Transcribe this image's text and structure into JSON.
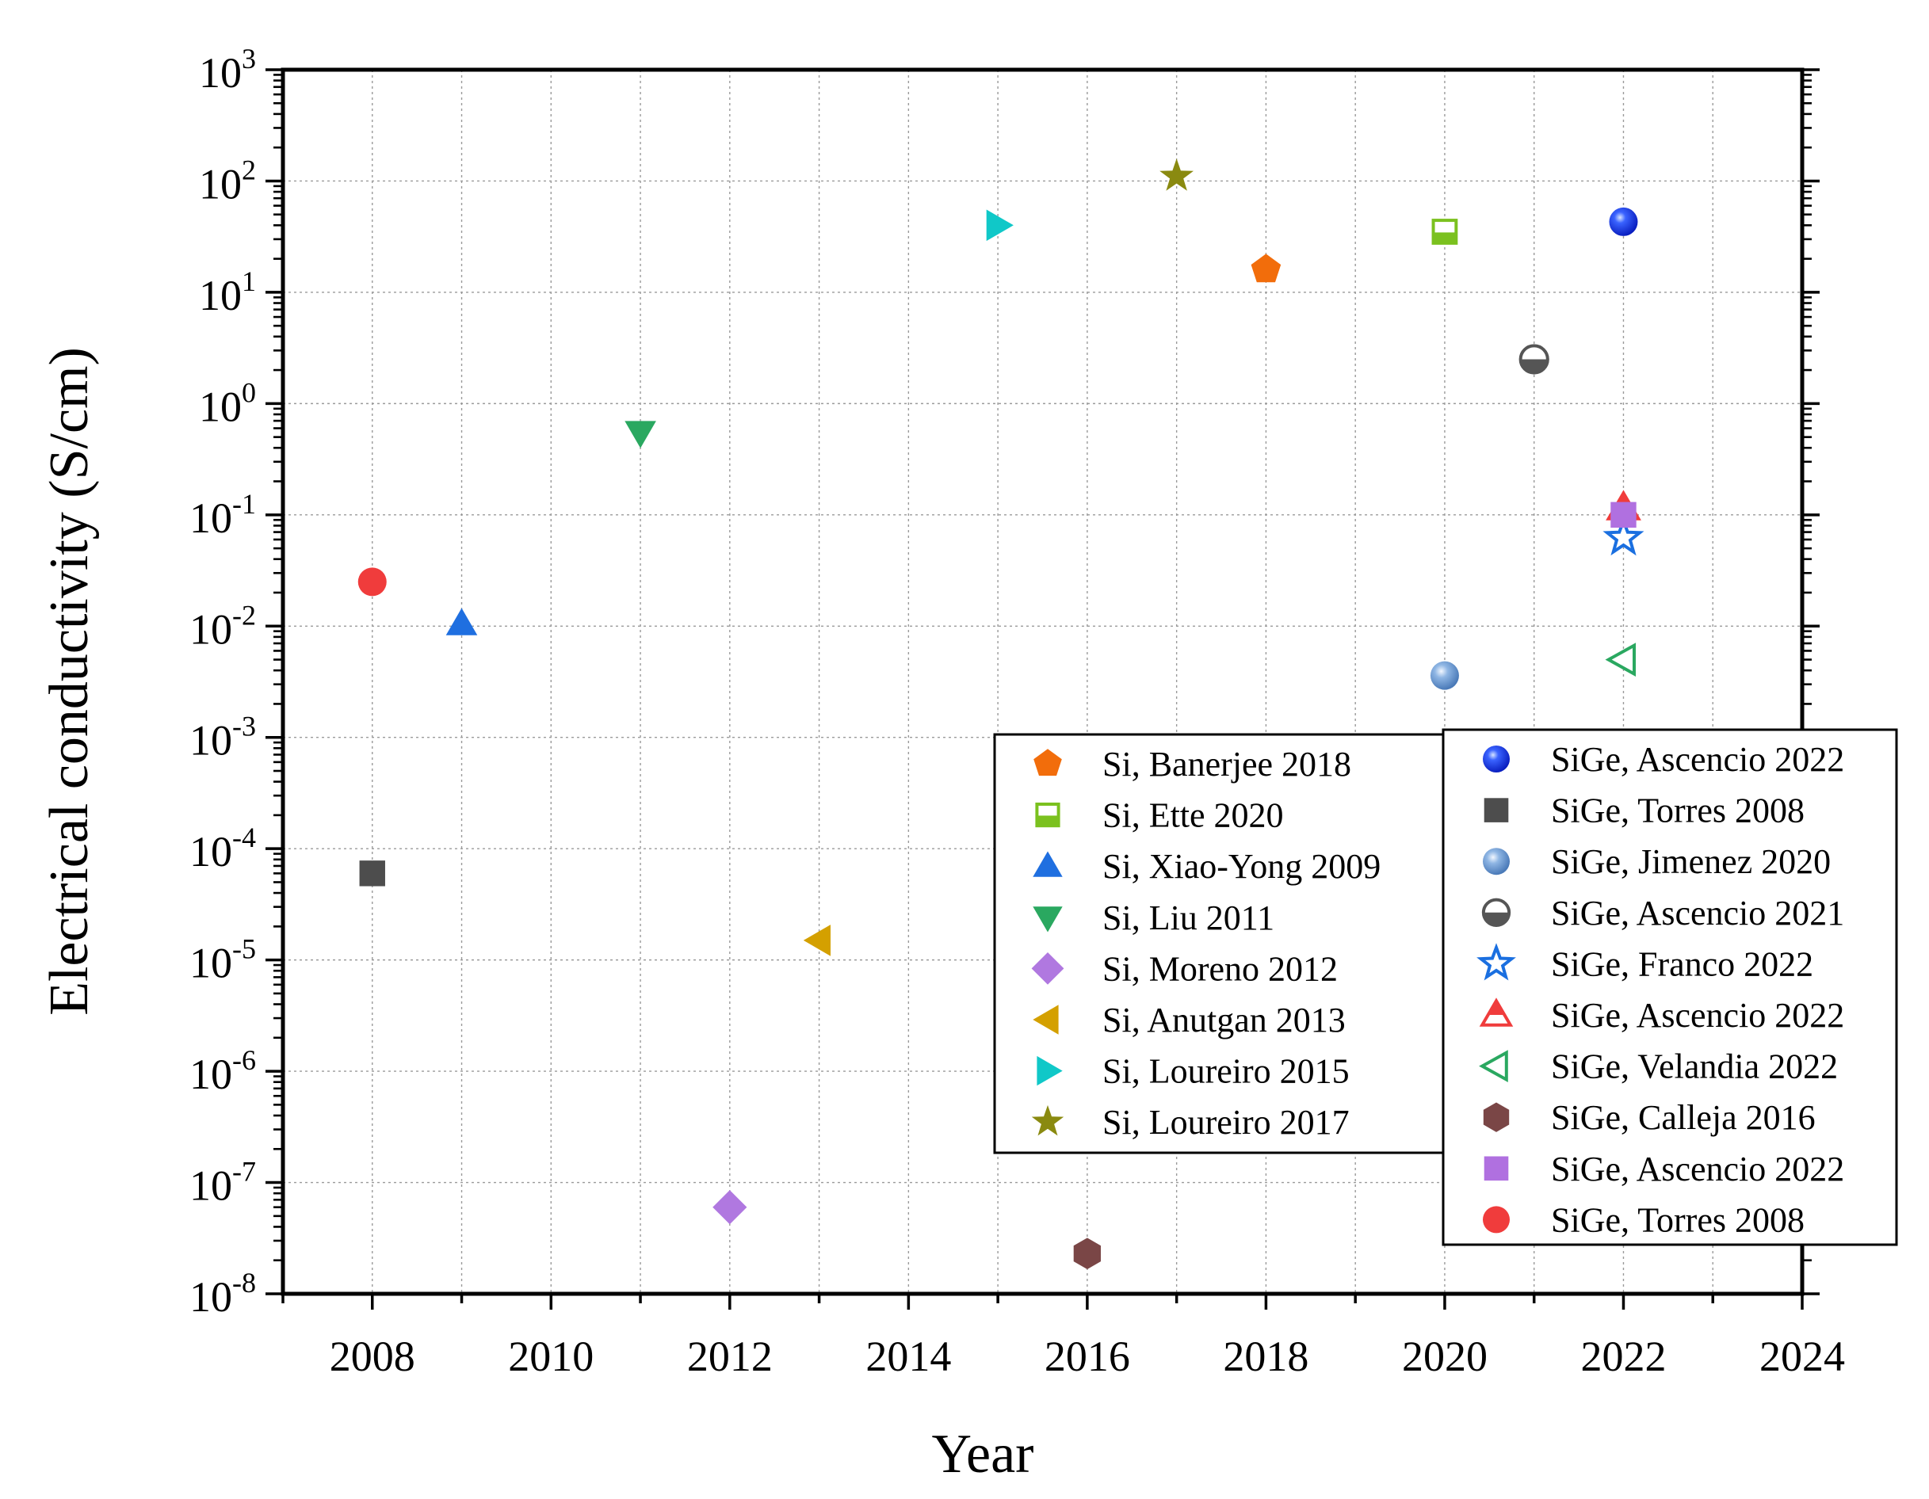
{
  "chart_data": {
    "type": "scatter",
    "title": "",
    "xlabel": "Year",
    "ylabel": "Electrical conductivity (S/cm)",
    "xlim": [
      2007,
      2024
    ],
    "ylim_log10": [
      -8,
      3
    ],
    "yscale": "log",
    "grid": true,
    "xticks": [
      {
        "value": 2008,
        "label": "2008"
      },
      {
        "value": 2010,
        "label": "2010"
      },
      {
        "value": 2012,
        "label": "2012"
      },
      {
        "value": 2014,
        "label": "2014"
      },
      {
        "value": 2016,
        "label": "2016"
      },
      {
        "value": 2018,
        "label": "2018"
      },
      {
        "value": 2020,
        "label": "2020"
      },
      {
        "value": 2022,
        "label": "2022"
      },
      {
        "value": 2024,
        "label": "2024"
      }
    ],
    "yticks": [
      {
        "exp": 3,
        "base": "10",
        "sup": "3"
      },
      {
        "exp": 2,
        "base": "10",
        "sup": "2"
      },
      {
        "exp": 1,
        "base": "10",
        "sup": "1"
      },
      {
        "exp": 0,
        "base": "10",
        "sup": "0"
      },
      {
        "exp": -1,
        "base": "10",
        "sup": "-1"
      },
      {
        "exp": -2,
        "base": "10",
        "sup": "-2"
      },
      {
        "exp": -3,
        "base": "10",
        "sup": "-3"
      },
      {
        "exp": -4,
        "base": "10",
        "sup": "-4"
      },
      {
        "exp": -5,
        "base": "10",
        "sup": "-5"
      },
      {
        "exp": -6,
        "base": "10",
        "sup": "-6"
      },
      {
        "exp": -7,
        "base": "10",
        "sup": "-7"
      },
      {
        "exp": -8,
        "base": "10",
        "sup": "-8"
      }
    ],
    "series": [
      {
        "name": "Si, Banerjee 2018",
        "group": "Si",
        "marker": "pentagon",
        "color": "#f26d0b",
        "x": 2018,
        "y": 16
      },
      {
        "name": "Si, Ette 2020",
        "group": "Si",
        "marker": "square-half",
        "color": "#7bc11f",
        "x": 2020,
        "y": 35
      },
      {
        "name": "Si, Xiao-Yong 2009",
        "group": "Si",
        "marker": "triangle-up",
        "color": "#1f6fe0",
        "x": 2009,
        "y": 0.0105
      },
      {
        "name": "Si, Liu 2011",
        "group": "Si",
        "marker": "triangle-down",
        "color": "#2aa860",
        "x": 2011,
        "y": 0.55
      },
      {
        "name": "Si, Moreno 2012",
        "group": "Si",
        "marker": "diamond",
        "color": "#b078e0",
        "x": 2012,
        "y": 6e-08
      },
      {
        "name": "Si, Anutgan 2013",
        "group": "Si",
        "marker": "triangle-left",
        "color": "#d4a000",
        "x": 2013,
        "y": 1.5e-05
      },
      {
        "name": "Si, Loureiro 2015",
        "group": "Si",
        "marker": "triangle-right",
        "color": "#10c8c8",
        "x": 2015,
        "y": 40
      },
      {
        "name": "Si, Loureiro 2017",
        "group": "Si",
        "marker": "star",
        "color": "#8a8a10",
        "x": 2017,
        "y": 110
      },
      {
        "name": "SiGe, Ascencio 2022",
        "group": "SiGe",
        "marker": "sphere",
        "color": "#1a3df0",
        "x": 2022,
        "y": 43
      },
      {
        "name": "SiGe, Torres 2008",
        "group": "SiGe",
        "marker": "square",
        "color": "#4d4d4d",
        "x": 2008,
        "y": 6e-05
      },
      {
        "name": "SiGe, Jimenez 2020",
        "group": "SiGe",
        "marker": "sphere",
        "color": "#6b9bd0",
        "x": 2020,
        "y": 0.0036
      },
      {
        "name": "SiGe, Ascencio 2021",
        "group": "SiGe",
        "marker": "circle-half",
        "color": "#555555",
        "x": 2021,
        "y": 2.5
      },
      {
        "name": "SiGe, Franco 2022",
        "group": "SiGe",
        "marker": "star-open",
        "color": "#1a6fe0",
        "x": 2022,
        "y": 0.062
      },
      {
        "name": "SiGe, Ascencio 2022",
        "group": "SiGe",
        "marker": "triangle-open",
        "color": "#f03c3c",
        "x": 2022,
        "y": 0.115
      },
      {
        "name": "SiGe, Velandia 2022",
        "group": "SiGe",
        "marker": "triangle-left-open",
        "color": "#2aa860",
        "x": 2022,
        "y": 0.005
      },
      {
        "name": "SiGe, Calleja 2016",
        "group": "SiGe",
        "marker": "hexagon",
        "color": "#7a4646",
        "x": 2016,
        "y": 2.3e-08
      },
      {
        "name": "SiGe, Ascencio 2022",
        "group": "SiGe",
        "marker": "square",
        "color": "#b070e0",
        "x": 2022,
        "y": 0.1
      },
      {
        "name": "SiGe, Torres 2008",
        "group": "SiGe",
        "marker": "circle",
        "color": "#f03c3c",
        "x": 2008,
        "y": 0.025
      }
    ]
  }
}
